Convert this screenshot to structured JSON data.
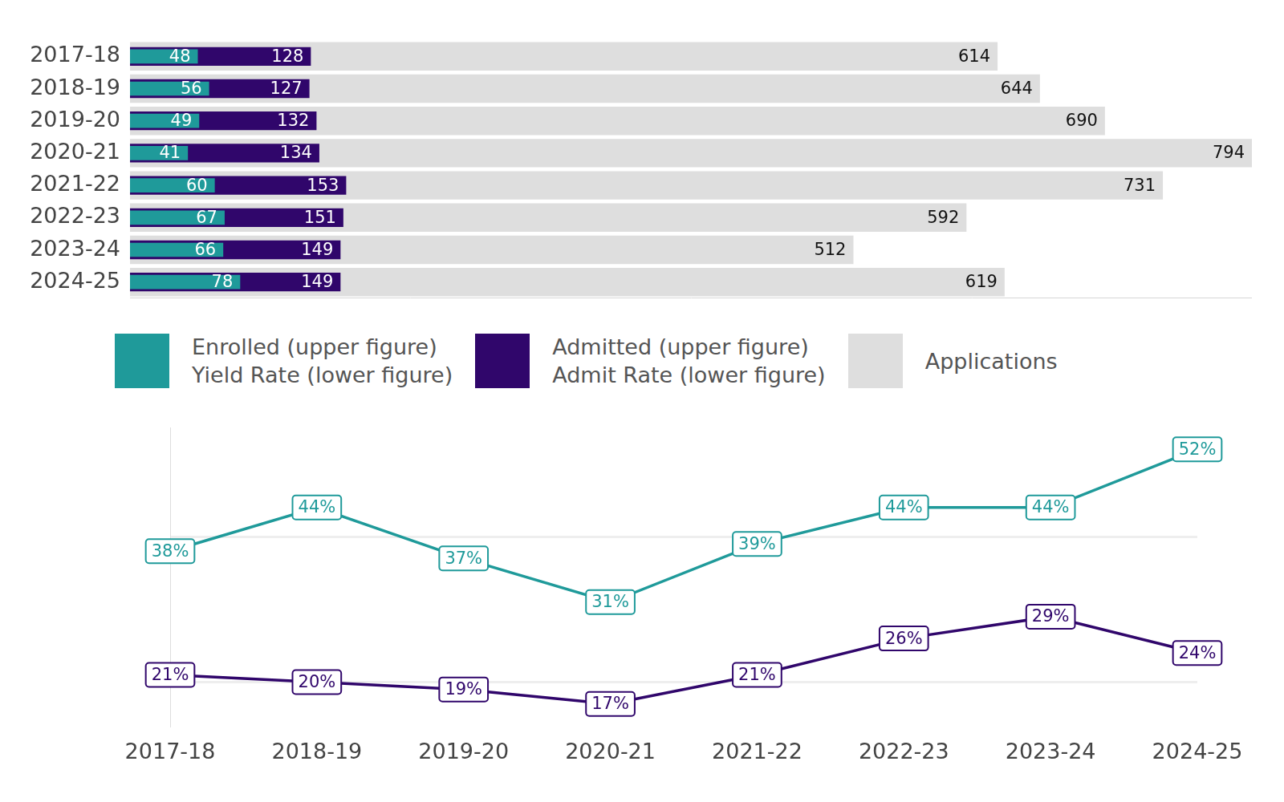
{
  "chart_data": [
    {
      "type": "bar",
      "orientation": "horizontal",
      "categories": [
        "2017-18",
        "2018-19",
        "2019-20",
        "2020-21",
        "2021-22",
        "2022-23",
        "2023-24",
        "2024-25"
      ],
      "series": [
        {
          "name": "Enrolled (upper figure)",
          "color": "#1f9a9a",
          "values": [
            48,
            56,
            49,
            41,
            60,
            67,
            66,
            78
          ]
        },
        {
          "name": "Admitted (upper figure)",
          "color": "#30066b",
          "values": [
            128,
            127,
            132,
            134,
            153,
            151,
            149,
            149
          ]
        },
        {
          "name": "Applications",
          "color": "#dedede",
          "values": [
            614,
            644,
            690,
            794,
            731,
            592,
            512,
            619
          ]
        }
      ],
      "xlim": [
        0,
        794
      ],
      "xticks": [],
      "data_labels": true,
      "tick_labels": "y",
      "legend": "bottom",
      "grid": false
    },
    {
      "type": "line",
      "categories": [
        "2017-18",
        "2018-19",
        "2019-20",
        "2020-21",
        "2021-22",
        "2022-23",
        "2023-24",
        "2024-25"
      ],
      "series": [
        {
          "name": "Yield Rate (lower figure)",
          "color": "#1f9a9a",
          "values": [
            38,
            44,
            37,
            31,
            39,
            44,
            44,
            52
          ],
          "value_labels": [
            "38%",
            "44%",
            "37%",
            "31%",
            "39%",
            "44%",
            "44%",
            "52%"
          ]
        },
        {
          "name": "Admit Rate (lower figure)",
          "color": "#30066b",
          "values": [
            21,
            20,
            19,
            17,
            21,
            26,
            29,
            24
          ],
          "value_labels": [
            "21%",
            "20%",
            "19%",
            "17%",
            "21%",
            "26%",
            "29%",
            "24%"
          ]
        }
      ],
      "ylim": [
        14,
        55
      ],
      "yticks": [
        20,
        40
      ],
      "data_labels": true,
      "tick_labels": "x",
      "grid": true
    }
  ]
}
